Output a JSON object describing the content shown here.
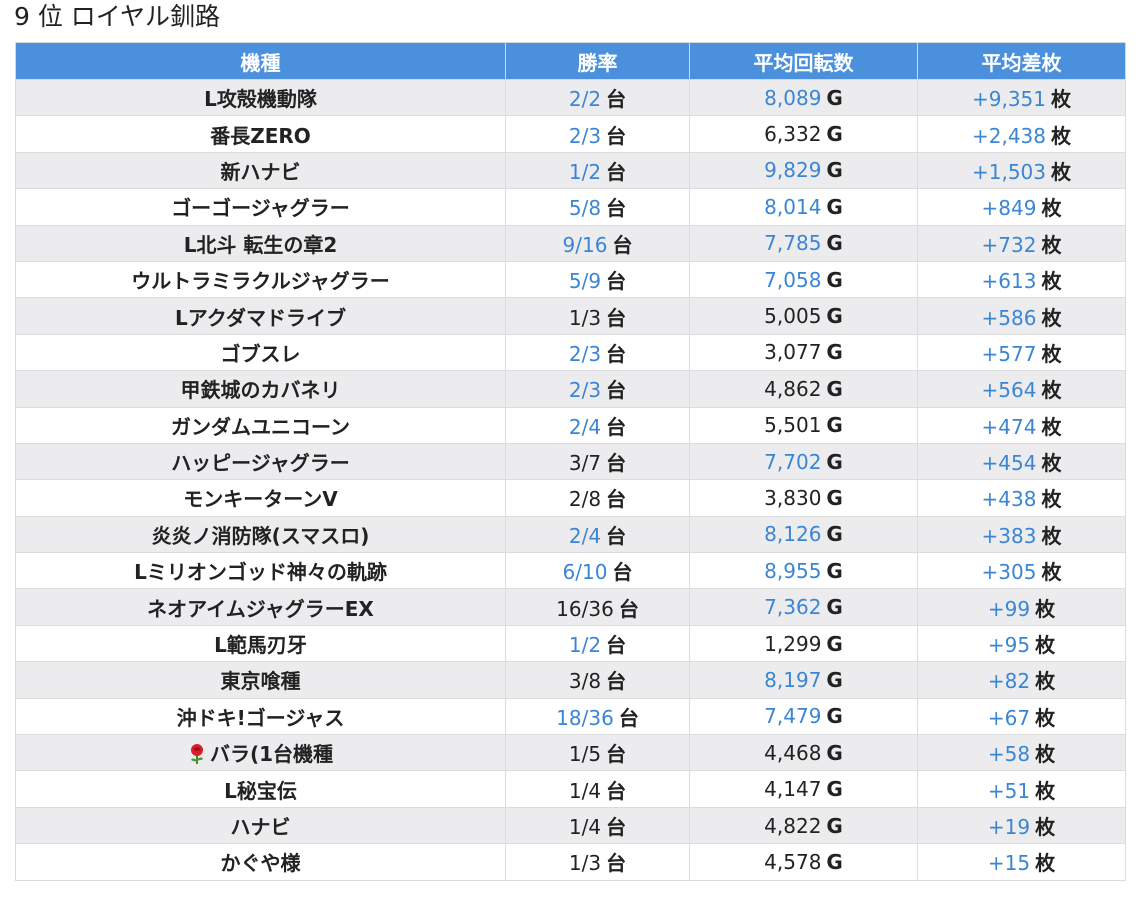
{
  "title": "9 位 ロイヤル釧路",
  "headers": [
    "機種",
    "勝率",
    "平均回転数",
    "平均差枚"
  ],
  "units": {
    "win": "台",
    "spin": "G",
    "diff": "枚"
  },
  "colors": {
    "header_bg": "#4a90dd",
    "highlight": "#3a86d4",
    "row_alt": "#ececee"
  },
  "rows": [
    {
      "name": "L攻殻機動隊",
      "win": "2/2",
      "win_hl": true,
      "spin": "8,089",
      "spin_hl": true,
      "diff": "+9,351"
    },
    {
      "name": "番長ZERO",
      "win": "2/3",
      "win_hl": true,
      "spin": "6,332",
      "spin_hl": false,
      "diff": "+2,438"
    },
    {
      "name": "新ハナビ",
      "win": "1/2",
      "win_hl": true,
      "spin": "9,829",
      "spin_hl": true,
      "diff": "+1,503"
    },
    {
      "name": "ゴーゴージャグラー",
      "win": "5/8",
      "win_hl": true,
      "spin": "8,014",
      "spin_hl": true,
      "diff": "+849"
    },
    {
      "name": "L北斗 転生の章2",
      "win": "9/16",
      "win_hl": true,
      "spin": "7,785",
      "spin_hl": true,
      "diff": "+732"
    },
    {
      "name": "ウルトラミラクルジャグラー",
      "win": "5/9",
      "win_hl": true,
      "spin": "7,058",
      "spin_hl": true,
      "diff": "+613"
    },
    {
      "name": "Lアクダマドライブ",
      "win": "1/3",
      "win_hl": false,
      "spin": "5,005",
      "spin_hl": false,
      "diff": "+586"
    },
    {
      "name": "ゴブスレ",
      "win": "2/3",
      "win_hl": true,
      "spin": "3,077",
      "spin_hl": false,
      "diff": "+577"
    },
    {
      "name": "甲鉄城のカバネリ",
      "win": "2/3",
      "win_hl": true,
      "spin": "4,862",
      "spin_hl": false,
      "diff": "+564"
    },
    {
      "name": "ガンダムユニコーン",
      "win": "2/4",
      "win_hl": true,
      "spin": "5,501",
      "spin_hl": false,
      "diff": "+474"
    },
    {
      "name": "ハッピージャグラー",
      "win": "3/7",
      "win_hl": false,
      "spin": "7,702",
      "spin_hl": true,
      "diff": "+454"
    },
    {
      "name": "モンキーターンV",
      "win": "2/8",
      "win_hl": false,
      "spin": "3,830",
      "spin_hl": false,
      "diff": "+438"
    },
    {
      "name": "炎炎ノ消防隊(スマスロ)",
      "win": "2/4",
      "win_hl": true,
      "spin": "8,126",
      "spin_hl": true,
      "diff": "+383"
    },
    {
      "name": "Lミリオンゴッド神々の軌跡",
      "win": "6/10",
      "win_hl": true,
      "spin": "8,955",
      "spin_hl": true,
      "diff": "+305"
    },
    {
      "name": "ネオアイムジャグラーEX",
      "win": "16/36",
      "win_hl": false,
      "spin": "7,362",
      "spin_hl": true,
      "diff": "+99"
    },
    {
      "name": "L範馬刃牙",
      "win": "1/2",
      "win_hl": true,
      "spin": "1,299",
      "spin_hl": false,
      "diff": "+95"
    },
    {
      "name": "東京喰種",
      "win": "3/8",
      "win_hl": false,
      "spin": "8,197",
      "spin_hl": true,
      "diff": "+82"
    },
    {
      "name": "沖ドキ!ゴージャス",
      "win": "18/36",
      "win_hl": true,
      "spin": "7,479",
      "spin_hl": true,
      "diff": "+67"
    },
    {
      "name": "バラ(1台機種",
      "icon": "rose-icon",
      "win": "1/5",
      "win_hl": false,
      "spin": "4,468",
      "spin_hl": false,
      "diff": "+58"
    },
    {
      "name": "L秘宝伝",
      "win": "1/4",
      "win_hl": false,
      "spin": "4,147",
      "spin_hl": false,
      "diff": "+51"
    },
    {
      "name": "ハナビ",
      "win": "1/4",
      "win_hl": false,
      "spin": "4,822",
      "spin_hl": false,
      "diff": "+19"
    },
    {
      "name": "かぐや様",
      "win": "1/3",
      "win_hl": false,
      "spin": "4,578",
      "spin_hl": false,
      "diff": "+15"
    }
  ]
}
